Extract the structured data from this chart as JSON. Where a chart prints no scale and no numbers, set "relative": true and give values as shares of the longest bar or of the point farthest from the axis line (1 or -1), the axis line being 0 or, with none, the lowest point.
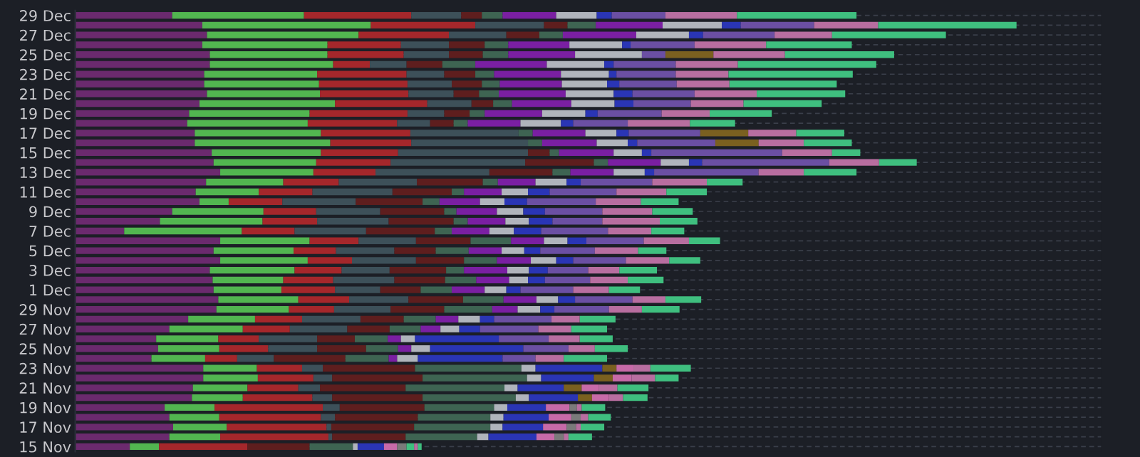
{
  "chart_data": {
    "type": "bar",
    "orientation": "horizontal",
    "stacked": true,
    "relative": true,
    "grid": "y",
    "categories": [
      "29 Dec",
      null,
      "27 Dec",
      null,
      "25 Dec",
      null,
      "23 Dec",
      null,
      "21 Dec",
      null,
      "19 Dec",
      null,
      "17 Dec",
      null,
      "15 Dec",
      null,
      "13 Dec",
      null,
      "11 Dec",
      null,
      "9 Dec",
      null,
      "7 Dec",
      null,
      "5 Dec",
      null,
      "3 Dec",
      null,
      "1 Dec",
      null,
      "29 Nov",
      null,
      "27 Nov",
      null,
      "25 Nov",
      null,
      "23 Nov",
      null,
      "21 Nov",
      null,
      "19 Nov",
      null,
      "17 Nov",
      null,
      "15 Nov"
    ],
    "series": [
      {
        "color": "#6b2a6e",
        "values": [
          0.103,
          0.135,
          0.14,
          0.135,
          0.143,
          0.143,
          0.137,
          0.137,
          0.14,
          0.132,
          0.121,
          0.119,
          0.127,
          0.127,
          0.145,
          0.147,
          0.154,
          0.139,
          0.128,
          0.132,
          0.103,
          0.09,
          0.052,
          0.154,
          0.147,
          0.154,
          0.143,
          0.146,
          0.147,
          0.152,
          0.15,
          0.12,
          0.1,
          0.086,
          0.088,
          0.081,
          0.136,
          0.136,
          0.125,
          0.124,
          0.095,
          0.1,
          0.104,
          0.1,
          0.058
        ]
      },
      {
        "color": "#52b650",
        "values": [
          0.14,
          0.179,
          0.161,
          0.133,
          0.125,
          0.131,
          0.12,
          0.122,
          0.12,
          0.144,
          0.128,
          0.128,
          0.134,
          0.144,
          0.116,
          0.109,
          0.099,
          0.082,
          0.067,
          0.031,
          0.097,
          0.109,
          0.125,
          0.095,
          0.085,
          0.093,
          0.09,
          0.075,
          0.072,
          0.085,
          0.077,
          0.071,
          0.078,
          0.066,
          0.065,
          0.057,
          0.057,
          0.058,
          0.058,
          0.054,
          0.053,
          0.053,
          0.057,
          0.054,
          0.031
        ]
      },
      {
        "color": "#a5272b",
        "values": [
          0.114,
          0.111,
          0.096,
          0.078,
          0.081,
          0.039,
          0.095,
          0.094,
          0.094,
          0.098,
          0.104,
          0.095,
          0.095,
          0.086,
          0.082,
          0.079,
          0.066,
          0.059,
          0.057,
          0.057,
          0.056,
          0.058,
          0.056,
          0.052,
          0.045,
          0.047,
          0.05,
          0.053,
          0.057,
          0.054,
          0.048,
          0.05,
          0.05,
          0.043,
          0.052,
          0.034,
          0.048,
          0.059,
          0.054,
          0.074,
          0.115,
          0.108,
          0.106,
          0.115,
          0.094
        ]
      },
      {
        "colors": [
          "#3d5059",
          "#3d5059",
          "#3d5059",
          "#3d5059",
          "#3d5059",
          "#3d5059",
          "#3d5059",
          "#3d5059",
          "#3d5059",
          "#3d5059",
          "#3d5059",
          "#3d5059",
          "#3d5059",
          "#3d5059",
          "#3d5059",
          "#3d5059",
          "#3d5059",
          "#3d5059",
          "#3d5059",
          "#3d5059",
          "#3d5059",
          "#3d5059",
          "#3d5059",
          "#3d5059",
          "#3d5059",
          "#3d5059",
          "#3d5059",
          "#3d5059",
          "#3d5059",
          "#3d5059",
          "#3d5059",
          "#3d5059",
          "#3d5059",
          "#3d5059",
          "#3d5059",
          "#3d5059",
          "#3d5059",
          "#3d5059",
          "#3d5059",
          "#3d5059",
          "#3d5059",
          "#3d5059",
          "#3d5059",
          "#3d5059",
          "#5e1e1e"
        ],
        "values": [
          0.053,
          0.073,
          0.061,
          0.051,
          0.048,
          0.039,
          0.04,
          0.047,
          0.048,
          0.047,
          0.039,
          0.035,
          0.115,
          0.124,
          0.138,
          0.143,
          0.121,
          0.083,
          0.085,
          0.078,
          0.068,
          0.076,
          0.076,
          0.061,
          0.062,
          0.068,
          0.051,
          0.065,
          0.048,
          0.063,
          0.06,
          0.062,
          0.061,
          0.062,
          0.052,
          0.039,
          0.022,
          0.02,
          0.023,
          0.021,
          0.018,
          0.015,
          0.005,
          0.004,
          0.066
        ]
      },
      {
        "colors": [
          "#5e1e1e",
          "#5e1e1e",
          "#5e1e1e",
          "#5e1e1e",
          "#5e1e1e",
          "#5e1e1e",
          "#5e1e1e",
          "#5e1e1e",
          "#5e1e1e",
          "#5e1e1e",
          "#5e1e1e",
          "#5e1e1e",
          "#3e6452",
          "#3e6452",
          "#5e1e1e",
          "#5e1e1e",
          "#5e1e1e",
          "#5e1e1e",
          "#5e1e1e",
          "#5e1e1e",
          "#5e1e1e",
          "#5e1e1e",
          "#5e1e1e",
          "#5e1e1e",
          "#5e1e1e",
          "#5e1e1e",
          "#5e1e1e",
          "#5e1e1e",
          "#5e1e1e",
          "#5e1e1e",
          "#5e1e1e",
          "#5e1e1e",
          "#5e1e1e",
          "#5e1e1e",
          "#5e1e1e",
          "#5e1e1e",
          "#5e1e1e",
          "#5e1e1e",
          "#5e1e1e",
          "#5e1e1e",
          "#5e1e1e",
          "#5e1e1e",
          "#5e1e1e",
          "#5e1e1e",
          "#3e6452"
        ],
        "values": [
          0.022,
          0.025,
          0.035,
          0.038,
          0.036,
          0.038,
          0.033,
          0.032,
          0.027,
          0.023,
          0.027,
          0.025,
          0.015,
          0.015,
          0.023,
          0.073,
          0.067,
          0.07,
          0.063,
          0.071,
          0.068,
          0.069,
          0.073,
          0.058,
          0.044,
          0.051,
          0.06,
          0.054,
          0.043,
          0.058,
          0.057,
          0.046,
          0.045,
          0.04,
          0.052,
          0.076,
          0.098,
          0.096,
          0.091,
          0.096,
          0.09,
          0.088,
          0.088,
          0.078,
          0.046
        ]
      },
      {
        "colors": [
          "#3e6452",
          "#3e6452",
          "#3e6452",
          "#3e6452",
          "#3e6452",
          "#3e6452",
          "#3e6452",
          "#3e6452",
          "#3e6452",
          "#3e6452",
          "#3e6452",
          "#3e6452",
          "#7a1fa2",
          "#7a1fa2",
          "#3e6452",
          "#3e6452",
          "#3e6452",
          "#3e6452",
          "#3e6452",
          "#3e6452",
          "#3e6452",
          "#3e6452",
          "#3e6452",
          "#3e6452",
          "#3e6452",
          "#3e6452",
          "#3e6452",
          "#3e6452",
          "#3e6452",
          "#3e6452",
          "#3e6452",
          "#3e6452",
          "#3e6452",
          "#3e6452",
          "#3e6452",
          "#3e6452",
          "#3e6452",
          "#3e6452",
          "#3e6452",
          "#3e6452",
          "#3e6452",
          "#3e6452",
          "#3e6452",
          "#3e6452",
          "#b0b4bc"
        ],
        "values": [
          0.022,
          0.03,
          0.025,
          0.025,
          0.027,
          0.035,
          0.02,
          0.019,
          0.021,
          0.02,
          0.016,
          0.015,
          0.056,
          0.058,
          0.01,
          0.015,
          0.019,
          0.016,
          0.013,
          0.018,
          0.013,
          0.015,
          0.018,
          0.043,
          0.035,
          0.035,
          0.019,
          0.033,
          0.033,
          0.043,
          0.051,
          0.034,
          0.033,
          0.035,
          0.034,
          0.046,
          0.113,
          0.111,
          0.105,
          0.099,
          0.074,
          0.077,
          0.081,
          0.076,
          0.005
        ]
      },
      {
        "colors": [
          "#7a1fa2",
          "#7a1fa2",
          "#7a1fa2",
          "#7a1fa2",
          "#7a1fa2",
          "#7a1fa2",
          "#7a1fa2",
          "#7a1fa2",
          "#7a1fa2",
          "#7a1fa2",
          "#7a1fa2",
          "#7a1fa2",
          "#b0b4bc",
          "#b0b4bc",
          "#7a1fa2",
          "#7a1fa2",
          "#7a1fa2",
          "#7a1fa2",
          "#7a1fa2",
          "#7a1fa2",
          "#7a1fa2",
          "#7a1fa2",
          "#7a1fa2",
          "#7a1fa2",
          "#7a1fa2",
          "#7a1fa2",
          "#7a1fa2",
          "#7a1fa2",
          "#7a1fa2",
          "#7a1fa2",
          "#7a1fa2",
          "#7a1fa2",
          "#7a1fa2",
          "#7a1fa2",
          "#7a1fa2",
          "#7a1fa2",
          "#b0b4bc",
          "#b0b4bc",
          "#b0b4bc",
          "#b0b4bc",
          "#b0b4bc",
          "#b0b4bc",
          "#b0b4bc",
          "#b0b4bc",
          "#2a35b5"
        ],
        "values": [
          0.057,
          0.071,
          0.078,
          0.065,
          0.071,
          0.076,
          0.071,
          0.066,
          0.071,
          0.063,
          0.061,
          0.056,
          0.033,
          0.033,
          0.058,
          0.056,
          0.046,
          0.04,
          0.04,
          0.043,
          0.043,
          0.04,
          0.04,
          0.035,
          0.035,
          0.036,
          0.046,
          0.035,
          0.035,
          0.035,
          0.027,
          0.024,
          0.021,
          0.014,
          0.014,
          0.009,
          0.015,
          0.015,
          0.014,
          0.014,
          0.014,
          0.014,
          0.013,
          0.012,
          0.028
        ]
      },
      {
        "colors": [
          "#b0b4bc",
          "#b0b4bc",
          "#b0b4bc",
          "#b0b4bc",
          "#b0b4bc",
          "#b0b4bc",
          "#b0b4bc",
          "#b0b4bc",
          "#b0b4bc",
          "#b0b4bc",
          "#b0b4bc",
          "#b0b4bc",
          "#2a35b5",
          "#2a35b5",
          "#b0b4bc",
          "#b0b4bc",
          "#b0b4bc",
          "#b0b4bc",
          "#b0b4bc",
          "#b0b4bc",
          "#b0b4bc",
          "#b0b4bc",
          "#b0b4bc",
          "#b0b4bc",
          "#b0b4bc",
          "#b0b4bc",
          "#b0b4bc",
          "#b0b4bc",
          "#b0b4bc",
          "#b0b4bc",
          "#b0b4bc",
          "#b0b4bc",
          "#b0b4bc",
          "#b0b4bc",
          "#b0b4bc",
          "#b0b4bc",
          "#2a35b5",
          "#2a35b5",
          "#2a35b5",
          "#2a35b5",
          "#2a35b5",
          "#2a35b5",
          "#2a35b5",
          "#2a35b5",
          "#c76aa8"
        ],
        "values": [
          0.043,
          0.063,
          0.056,
          0.056,
          0.071,
          0.061,
          0.051,
          0.048,
          0.051,
          0.046,
          0.046,
          0.043,
          0.013,
          0.01,
          0.03,
          0.03,
          0.033,
          0.033,
          0.028,
          0.026,
          0.028,
          0.025,
          0.026,
          0.025,
          0.024,
          0.027,
          0.023,
          0.02,
          0.023,
          0.023,
          0.024,
          0.023,
          0.02,
          0.015,
          0.02,
          0.022,
          0.071,
          0.056,
          0.049,
          0.052,
          0.041,
          0.048,
          0.043,
          0.051,
          0.014
        ]
      },
      {
        "colors": [
          "#2a35b5",
          "#2a35b5",
          "#2a35b5",
          "#2a35b5",
          "#6b4fa3",
          "#2a35b5",
          "#2a35b5",
          "#2a35b5",
          "#2a35b5",
          "#2a35b5",
          "#2a35b5",
          "#2a35b5",
          "#6b4fa3",
          "#6b4fa3",
          "#2a35b5",
          "#2a35b5",
          "#2a35b5",
          "#2a35b5",
          "#2a35b5",
          "#2a35b5",
          "#2a35b5",
          "#2a35b5",
          "#2a35b5",
          "#2a35b5",
          "#2a35b5",
          "#2a35b5",
          "#2a35b5",
          "#2a35b5",
          "#2a35b5",
          "#2a35b5",
          "#2a35b5",
          "#2a35b5",
          "#2a35b5",
          "#2a35b5",
          "#2a35b5",
          "#2a35b5",
          "#7a6020",
          "#7a6020",
          "#7a6020",
          "#7a6020",
          "#c76aa8",
          "#c76aa8",
          "#c76aa8",
          "#c76aa8",
          "#7a7a7a"
        ],
        "values": [
          0.016,
          0.02,
          0.015,
          0.009,
          0.025,
          0.01,
          0.008,
          0.013,
          0.02,
          0.02,
          0.013,
          0.013,
          0.076,
          0.083,
          0.01,
          0.014,
          0.01,
          0.015,
          0.023,
          0.024,
          0.023,
          0.025,
          0.029,
          0.02,
          0.017,
          0.018,
          0.02,
          0.018,
          0.015,
          0.018,
          0.015,
          0.015,
          0.022,
          0.089,
          0.099,
          0.09,
          0.015,
          0.02,
          0.019,
          0.015,
          0.025,
          0.024,
          0.025,
          0.019,
          0.01
        ]
      },
      {
        "colors": [
          "#6b4fa3",
          "#6b4fa3",
          "#6b4fa3",
          "#6b4fa3",
          "#7a6020",
          "#6b4fa3",
          "#6b4fa3",
          "#6b4fa3",
          "#6b4fa3",
          "#6b4fa3",
          "#6b4fa3",
          "#6b4fa3",
          "#7a6020",
          "#7a6020",
          "#6b4fa3",
          "#6b4fa3",
          "#6b4fa3",
          "#6b4fa3",
          "#6b4fa3",
          "#6b4fa3",
          "#6b4fa3",
          "#6b4fa3",
          "#6b4fa3",
          "#6b4fa3",
          "#6b4fa3",
          "#6b4fa3",
          "#6b4fa3",
          "#6b4fa3",
          "#6b4fa3",
          "#6b4fa3",
          "#6b4fa3",
          "#6b4fa3",
          "#6b4fa3",
          "#6b4fa3",
          "#6b4fa3",
          "#6b4fa3",
          "#c76aa8",
          "#c76aa8",
          "#c76aa8",
          "#c76aa8",
          "#7a7a7a",
          "#7a7a7a",
          "#7a7a7a",
          "#7a7a7a",
          "#3fbf7f"
        ],
        "values": [
          0.057,
          0.078,
          0.076,
          0.068,
          0.051,
          0.066,
          0.063,
          0.061,
          0.066,
          0.061,
          0.068,
          0.058,
          0.051,
          0.046,
          0.139,
          0.135,
          0.111,
          0.076,
          0.071,
          0.073,
          0.061,
          0.053,
          0.071,
          0.061,
          0.058,
          0.056,
          0.043,
          0.048,
          0.056,
          0.061,
          0.058,
          0.061,
          0.062,
          0.053,
          0.048,
          0.035,
          0.018,
          0.02,
          0.018,
          0.018,
          0.008,
          0.01,
          0.01,
          0.01,
          0.008
        ]
      },
      {
        "color": "#b86ea0",
        "values": [
          0.076,
          0.068,
          0.061,
          0.076,
          0.076,
          0.066,
          0.056,
          0.056,
          0.066,
          0.056,
          0.051,
          0.066,
          0.051,
          0.048,
          0.053,
          0.053,
          0.048,
          0.058,
          0.053,
          0.048,
          0.053,
          0.061,
          0.046,
          0.048,
          0.046,
          0.046,
          0.033,
          0.04,
          0.038,
          0.035,
          0.035,
          0.03,
          0.035,
          0.033,
          0.028,
          0.03,
          0.018,
          0.025,
          0.02,
          0.015,
          0.005,
          0.008,
          0.005,
          0.005,
          0.004
        ]
      },
      {
        "color": "#3fbf7f",
        "values": [
          0.127,
          0.147,
          0.121,
          0.091,
          0.116,
          0.147,
          0.132,
          0.114,
          0.094,
          0.083,
          0.066,
          0.048,
          0.051,
          0.051,
          0.03,
          0.04,
          0.056,
          0.038,
          0.043,
          0.04,
          0.043,
          0.04,
          0.035,
          0.033,
          0.03,
          0.033,
          0.04,
          0.038,
          0.033,
          0.038,
          0.04,
          0.038,
          0.038,
          0.035,
          0.035,
          0.046,
          0.043,
          0.025,
          0.033,
          0.026,
          0.025,
          0.024,
          0.025,
          0.025,
          0.004
        ]
      }
    ]
  }
}
